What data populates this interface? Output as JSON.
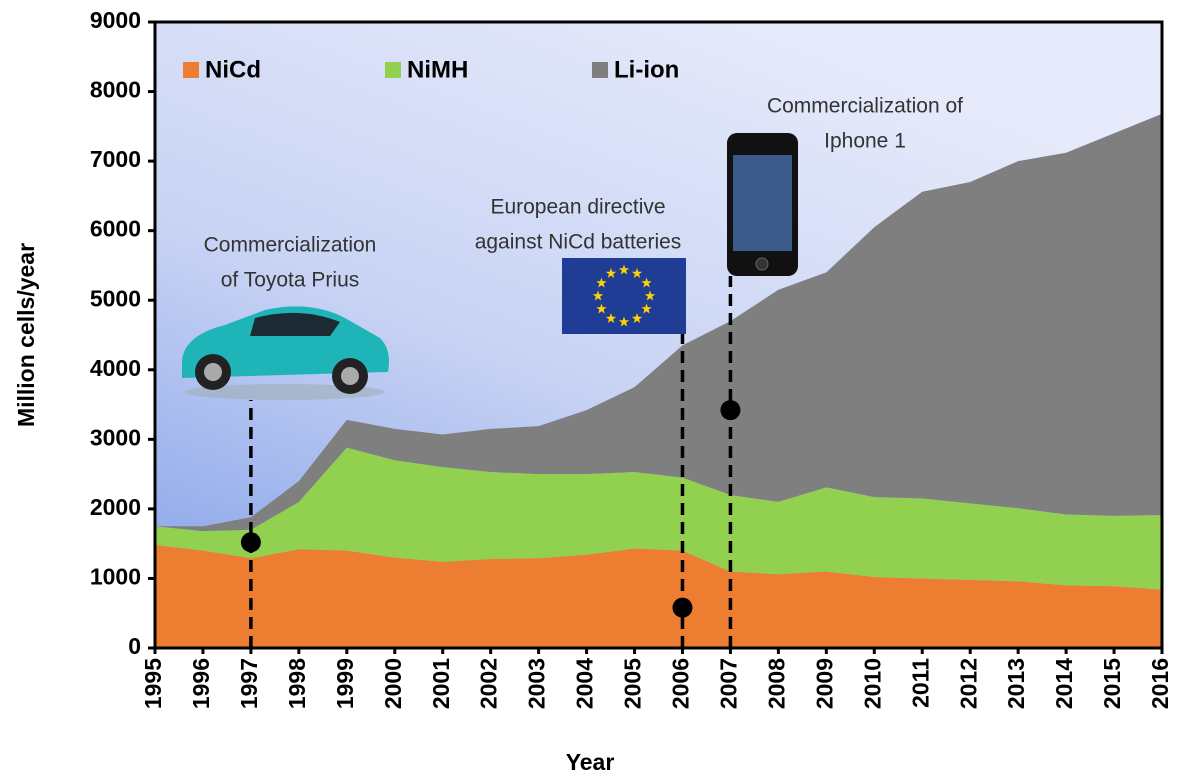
{
  "chart_data": {
    "type": "stacked-area",
    "x_label": "Year",
    "y_label": "Million cells/year",
    "x": [
      1995,
      1996,
      1997,
      1998,
      1999,
      2000,
      2001,
      2002,
      2003,
      2004,
      2005,
      2006,
      2007,
      2008,
      2009,
      2010,
      2011,
      2012,
      2013,
      2014,
      2015,
      2016
    ],
    "series": [
      {
        "name": "NiCd",
        "color": "#ed7d31",
        "values": [
          1480,
          1400,
          1290,
          1420,
          1400,
          1300,
          1240,
          1280,
          1290,
          1340,
          1430,
          1400,
          1100,
          1060,
          1100,
          1020,
          1000,
          980,
          960,
          900,
          890,
          840
        ]
      },
      {
        "name": "NiMH",
        "color": "#92d050",
        "values": [
          270,
          280,
          410,
          680,
          1480,
          1400,
          1360,
          1250,
          1210,
          1160,
          1100,
          1050,
          1100,
          1040,
          1210,
          1150,
          1150,
          1100,
          1050,
          1020,
          1010,
          1070
        ]
      },
      {
        "name": "Li-ion",
        "color": "#7f7f7f",
        "values": [
          0,
          70,
          180,
          300,
          400,
          450,
          470,
          620,
          690,
          920,
          1220,
          1900,
          2500,
          3050,
          3090,
          3880,
          4410,
          4620,
          4990,
          5200,
          5500,
          5770
        ]
      }
    ],
    "xlim": [
      1995,
      2016
    ],
    "ylim": [
      0,
      9000
    ],
    "xticks": [
      1995,
      1996,
      1997,
      1998,
      1999,
      2000,
      2001,
      2002,
      2003,
      2004,
      2005,
      2006,
      2007,
      2008,
      2009,
      2010,
      2011,
      2012,
      2013,
      2014,
      2015,
      2016
    ],
    "yticks": [
      0,
      1000,
      2000,
      3000,
      4000,
      5000,
      6000,
      7000,
      8000,
      9000
    ],
    "annotations": [
      {
        "text": [
          "Commercialization",
          "of Toyota Prius"
        ],
        "x": 1997,
        "y": 1520
      },
      {
        "text": [
          "European directive",
          "against NiCd batteries"
        ],
        "x": 2006,
        "y": 580
      },
      {
        "text": [
          "Commercialization of",
          "Iphone 1"
        ],
        "x": 2007,
        "y": 3420
      }
    ]
  }
}
